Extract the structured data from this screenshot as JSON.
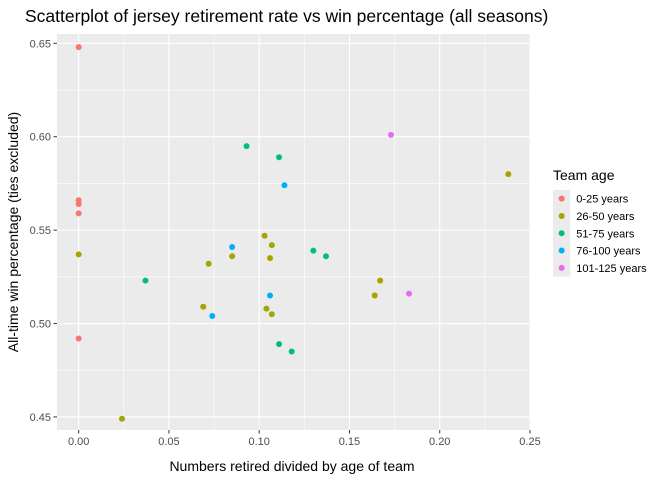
{
  "chart_data": {
    "type": "scatter",
    "title": "Scatterplot of jersey retirement rate vs win percentage (all seasons)",
    "xlabel": "Numbers retired divided by age of team",
    "ylabel": "All-time win percentage (ties excluded)",
    "xlim": [
      -0.012,
      0.25
    ],
    "ylim": [
      0.443,
      0.655
    ],
    "x_ticks": [
      0.0,
      0.05,
      0.1,
      0.15,
      0.2,
      0.25
    ],
    "x_tick_labels": [
      "0.00",
      "0.05",
      "0.10",
      "0.15",
      "0.20",
      "0.25"
    ],
    "y_ticks": [
      0.45,
      0.5,
      0.55,
      0.6,
      0.65
    ],
    "y_tick_labels": [
      "0.45",
      "0.50",
      "0.55",
      "0.60",
      "0.65"
    ],
    "grid": true,
    "legend_title": "Team age",
    "legend_position": "right",
    "series": [
      {
        "name": "0-25 years",
        "color": "#F8766D",
        "x": [
          0.0,
          0.0,
          0.0,
          0.0,
          0.0
        ],
        "y": [
          0.648,
          0.566,
          0.564,
          0.559,
          0.492
        ]
      },
      {
        "name": "26-50 years",
        "color": "#A3A500",
        "x": [
          0.0,
          0.024,
          0.069,
          0.072,
          0.085,
          0.103,
          0.104,
          0.106,
          0.107,
          0.107,
          0.164,
          0.167,
          0.238
        ],
        "y": [
          0.537,
          0.449,
          0.509,
          0.532,
          0.536,
          0.547,
          0.508,
          0.535,
          0.505,
          0.542,
          0.515,
          0.523,
          0.58
        ]
      },
      {
        "name": "51-75 years",
        "color": "#00BF7D",
        "x": [
          0.037,
          0.093,
          0.111,
          0.111,
          0.118,
          0.13,
          0.137
        ],
        "y": [
          0.523,
          0.595,
          0.589,
          0.489,
          0.485,
          0.539,
          0.536
        ]
      },
      {
        "name": "76-100 years",
        "color": "#00B0F6",
        "x": [
          0.074,
          0.085,
          0.106,
          0.114
        ],
        "y": [
          0.504,
          0.541,
          0.515,
          0.574
        ]
      },
      {
        "name": "101-125 years",
        "color": "#E76BF3",
        "x": [
          0.173,
          0.183
        ],
        "y": [
          0.601,
          0.516
        ]
      }
    ]
  }
}
